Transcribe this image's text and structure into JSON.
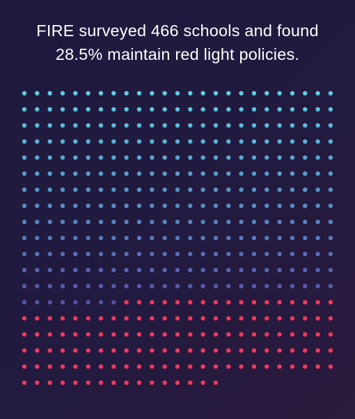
{
  "headline": {
    "line1": "FIRE surveyed 466 schools and found",
    "line2": "28.5% maintain red light policies."
  },
  "dot_grid": {
    "total": 466,
    "highlighted": 133,
    "highlight_fraction": 0.285,
    "columns": 25,
    "colors": {
      "gradient_start": "#5ecde6",
      "gradient_end": "#5552a6",
      "highlight": "#ee3a5f"
    }
  },
  "colors": {
    "background": "#1f1a3e",
    "text": "#ffffff"
  }
}
